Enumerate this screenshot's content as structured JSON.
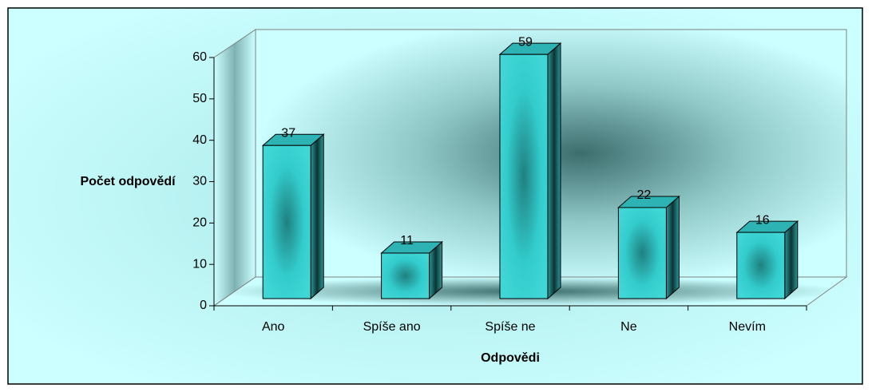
{
  "chart_data": {
    "type": "bar3d",
    "y_axis_label": "Počet odpovědí",
    "x_axis_label": "Odpovědi",
    "categories": [
      "Ano",
      "Spíše ano",
      "Spíše ne",
      "Ne",
      "Nevím"
    ],
    "values": [
      37,
      11,
      59,
      22,
      16
    ],
    "color": "#33cccc",
    "ylim": [
      0,
      60
    ],
    "yticks": [
      0,
      10,
      20,
      30,
      40,
      50,
      60
    ],
    "grid": false
  }
}
